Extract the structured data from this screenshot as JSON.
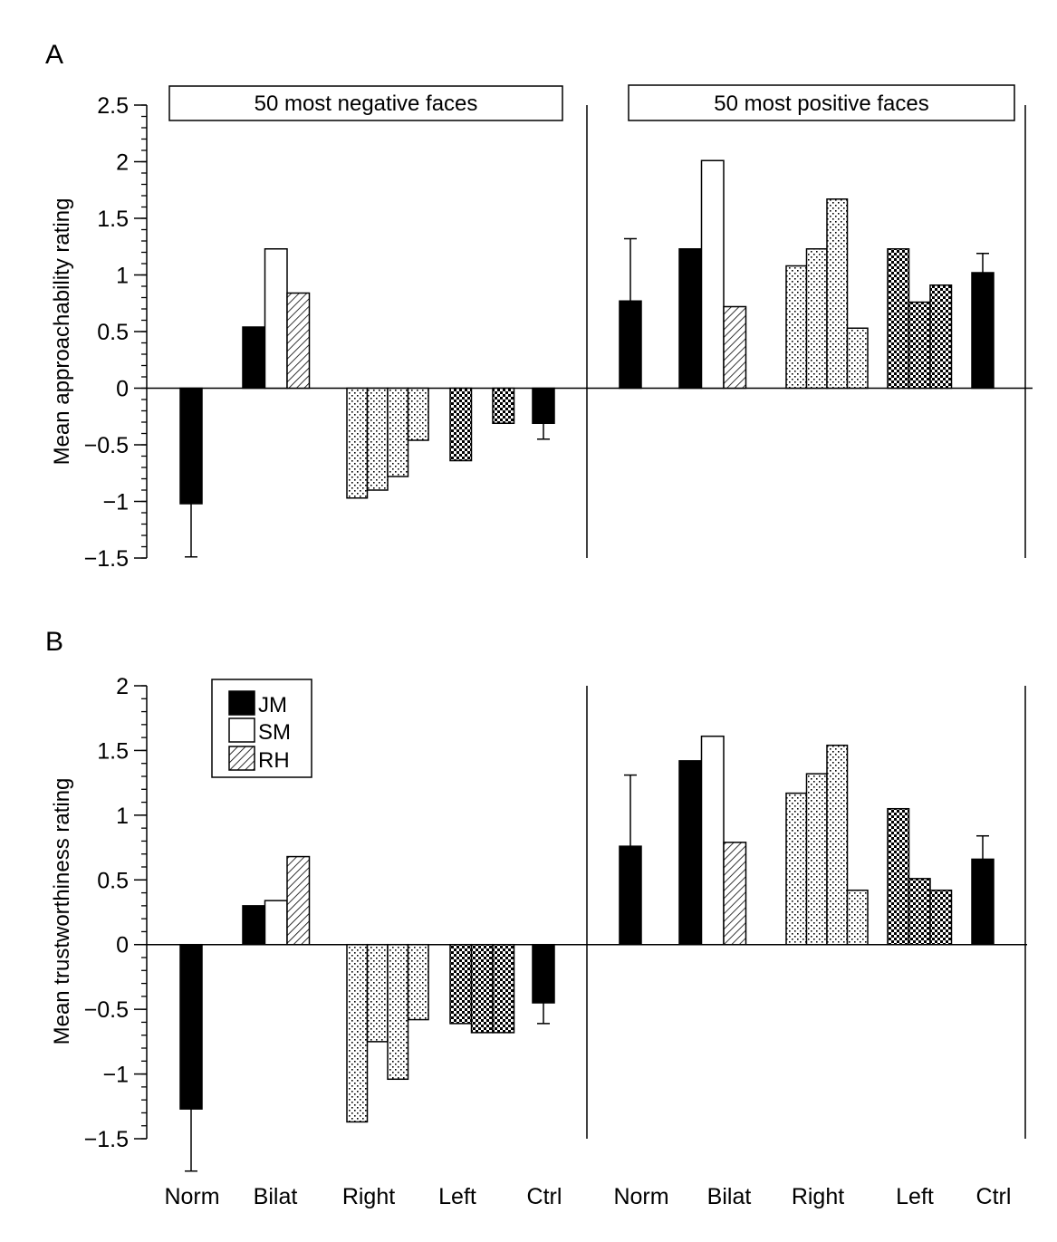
{
  "figure": {
    "panel_labels": [
      "A",
      "B"
    ]
  },
  "chart_data": [
    {
      "type": "bar",
      "panel": "A",
      "ylabel": "Mean approachability rating",
      "ylim": [
        -1.5,
        2.5
      ],
      "yticks": [
        2.5,
        2,
        1.5,
        1,
        0.5,
        0,
        -0.5,
        -1,
        -1.5
      ],
      "ytick_labels": [
        "2.5",
        "2",
        "1.5",
        "1",
        "0.5",
        "0",
        "−0.5",
        "−1",
        "−1.5"
      ],
      "minor_tick_step": 0.1,
      "grid": false,
      "groups": [
        {
          "header": "50 most negative faces",
          "categories": [
            {
              "label": "Norm",
              "bars": [
                {
                  "pattern": "solid",
                  "value": -1.02,
                  "error_to": -1.49
                }
              ]
            },
            {
              "label": "Bilat",
              "bars": [
                {
                  "pattern": "solid",
                  "subject": "JM",
                  "value": 0.54
                },
                {
                  "pattern": "open",
                  "subject": "SM",
                  "value": 1.23
                },
                {
                  "pattern": "hatch",
                  "subject": "RH",
                  "value": 0.84
                }
              ]
            },
            {
              "label": "Right",
              "bars": [
                {
                  "pattern": "dots",
                  "value": -0.97
                },
                {
                  "pattern": "dots",
                  "value": -0.9
                },
                {
                  "pattern": "dots",
                  "value": -0.78
                },
                {
                  "pattern": "dots",
                  "value": -0.46
                }
              ]
            },
            {
              "label": "Left",
              "bars": [
                {
                  "pattern": "checker",
                  "value": -0.64
                },
                {
                  "pattern": "checker",
                  "value": 0.0
                },
                {
                  "pattern": "checker",
                  "value": -0.31
                }
              ]
            },
            {
              "label": "Ctrl",
              "bars": [
                {
                  "pattern": "solid",
                  "value": -0.31,
                  "error_to": -0.45
                }
              ]
            }
          ]
        },
        {
          "header": "50 most positive faces",
          "categories": [
            {
              "label": "Norm",
              "bars": [
                {
                  "pattern": "solid",
                  "value": 0.77,
                  "error_to": 1.32
                }
              ]
            },
            {
              "label": "Bilat",
              "bars": [
                {
                  "pattern": "solid",
                  "subject": "JM",
                  "value": 1.23
                },
                {
                  "pattern": "open",
                  "subject": "SM",
                  "value": 2.01
                },
                {
                  "pattern": "hatch",
                  "subject": "RH",
                  "value": 0.72
                }
              ]
            },
            {
              "label": "Right",
              "bars": [
                {
                  "pattern": "dots",
                  "value": 1.08
                },
                {
                  "pattern": "dots",
                  "value": 1.23
                },
                {
                  "pattern": "dots",
                  "value": 1.67
                },
                {
                  "pattern": "dots",
                  "value": 0.53
                }
              ]
            },
            {
              "label": "Left",
              "bars": [
                {
                  "pattern": "checker",
                  "value": 1.23
                },
                {
                  "pattern": "checker",
                  "value": 0.76
                },
                {
                  "pattern": "checker",
                  "value": 0.91
                }
              ]
            },
            {
              "label": "Ctrl",
              "bars": [
                {
                  "pattern": "solid",
                  "value": 1.02,
                  "error_to": 1.19
                }
              ]
            }
          ]
        }
      ]
    },
    {
      "type": "bar",
      "panel": "B",
      "ylabel": "Mean trustworthiness rating",
      "ylim": [
        -1.5,
        2
      ],
      "yticks": [
        2,
        1.5,
        1,
        0.5,
        0,
        -0.5,
        -1,
        -1.5
      ],
      "ytick_labels": [
        "2",
        "1.5",
        "1",
        "0.5",
        "0",
        "−0.5",
        "−1",
        "−1.5"
      ],
      "minor_tick_step": 0.1,
      "grid": false,
      "legend": {
        "placement": "top-left",
        "entries": [
          {
            "label": "JM",
            "pattern": "solid"
          },
          {
            "label": "SM",
            "pattern": "open"
          },
          {
            "label": "RH",
            "pattern": "hatch"
          }
        ]
      },
      "groups": [
        {
          "header": "",
          "categories": [
            {
              "label": "Norm",
              "bars": [
                {
                  "pattern": "solid",
                  "value": -1.27,
                  "error_to": -1.75
                }
              ]
            },
            {
              "label": "Bilat",
              "bars": [
                {
                  "pattern": "solid",
                  "subject": "JM",
                  "value": 0.3
                },
                {
                  "pattern": "open",
                  "subject": "SM",
                  "value": 0.34
                },
                {
                  "pattern": "hatch",
                  "subject": "RH",
                  "value": 0.68
                }
              ]
            },
            {
              "label": "Right",
              "bars": [
                {
                  "pattern": "dots",
                  "value": -1.37
                },
                {
                  "pattern": "dots",
                  "value": -0.75
                },
                {
                  "pattern": "dots",
                  "value": -1.04
                },
                {
                  "pattern": "dots",
                  "value": -0.58
                }
              ]
            },
            {
              "label": "Left",
              "bars": [
                {
                  "pattern": "checker",
                  "value": -0.61
                },
                {
                  "pattern": "checker",
                  "value": -0.68
                },
                {
                  "pattern": "checker",
                  "value": -0.68
                }
              ]
            },
            {
              "label": "Ctrl",
              "bars": [
                {
                  "pattern": "solid",
                  "value": -0.45,
                  "error_to": -0.61
                }
              ]
            }
          ]
        },
        {
          "header": "",
          "categories": [
            {
              "label": "Norm",
              "bars": [
                {
                  "pattern": "solid",
                  "value": 0.76,
                  "error_to": 1.31
                }
              ]
            },
            {
              "label": "Bilat",
              "bars": [
                {
                  "pattern": "solid",
                  "subject": "JM",
                  "value": 1.42
                },
                {
                  "pattern": "open",
                  "subject": "SM",
                  "value": 1.61
                },
                {
                  "pattern": "hatch",
                  "subject": "RH",
                  "value": 0.79
                }
              ]
            },
            {
              "label": "Right",
              "bars": [
                {
                  "pattern": "dots",
                  "value": 1.17
                },
                {
                  "pattern": "dots",
                  "value": 1.32
                },
                {
                  "pattern": "dots",
                  "value": 1.54
                },
                {
                  "pattern": "dots",
                  "value": 0.42
                }
              ]
            },
            {
              "label": "Left",
              "bars": [
                {
                  "pattern": "checker",
                  "value": 1.05
                },
                {
                  "pattern": "checker",
                  "value": 0.51
                },
                {
                  "pattern": "checker",
                  "value": 0.42
                }
              ]
            },
            {
              "label": "Ctrl",
              "bars": [
                {
                  "pattern": "solid",
                  "value": 0.66,
                  "error_to": 0.84
                }
              ]
            }
          ]
        }
      ]
    }
  ]
}
